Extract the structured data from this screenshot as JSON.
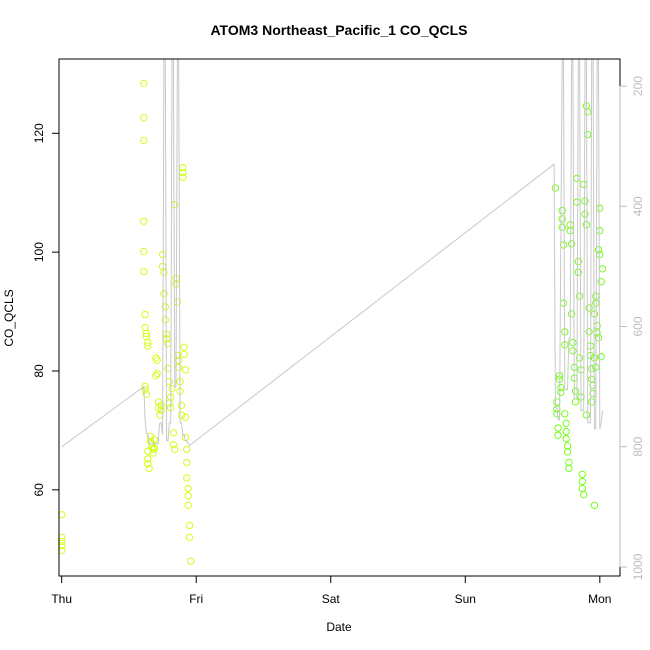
{
  "chart_data": {
    "type": "scatter",
    "title": "ATOM3 Northeast_Pacific_1 CO_QCLS",
    "xlabel": "Date",
    "ylabel": "CO_QCLS",
    "x_ticks": [
      "Thu",
      "Fri",
      "Sat",
      "Sun",
      "Mon"
    ],
    "xlim": [
      -0.02,
      4.15
    ],
    "ylim": [
      45.5,
      132.5
    ],
    "y_ticks": [
      60,
      80,
      100,
      120
    ],
    "y2_ticks": [
      200,
      400,
      600,
      800,
      1000
    ],
    "y2lim": [
      1015,
      155
    ],
    "grid": false,
    "colors": {
      "points_early": "#ccff00",
      "points_late": "#66ff00",
      "altitude_line": "#c8c8c8",
      "frame": "#000000",
      "right_axis": "#bdbdbd"
    },
    "series": [
      {
        "marker": "open-circle",
        "points": [
          [
            0.0,
            55.8
          ],
          [
            0.0,
            52.0
          ],
          [
            0.0,
            51.3
          ],
          [
            0.0,
            50.6
          ],
          [
            0.0,
            49.8
          ],
          [
            0.61,
            128.4
          ],
          [
            0.61,
            122.6
          ],
          [
            0.61,
            118.8
          ],
          [
            0.61,
            105.2
          ],
          [
            0.61,
            100.1
          ],
          [
            0.61,
            96.7
          ],
          [
            0.62,
            89.5
          ],
          [
            0.62,
            87.3
          ],
          [
            0.63,
            86.3
          ],
          [
            0.63,
            85.8
          ],
          [
            0.64,
            84.8
          ],
          [
            0.64,
            84.2
          ],
          [
            0.62,
            77.4
          ],
          [
            0.62,
            76.8
          ],
          [
            0.63,
            76.1
          ],
          [
            0.64,
            66.5
          ],
          [
            0.64,
            65.2
          ],
          [
            0.64,
            64.4
          ],
          [
            0.65,
            63.6
          ],
          [
            0.66,
            68.2
          ],
          [
            0.66,
            69.0
          ],
          [
            0.67,
            67.8
          ],
          [
            0.67,
            67.2
          ],
          [
            0.68,
            66.8
          ],
          [
            0.68,
            66.2
          ],
          [
            0.69,
            67.0
          ],
          [
            0.69,
            68.4
          ],
          [
            0.7,
            79.2
          ],
          [
            0.7,
            82.2
          ],
          [
            0.71,
            81.8
          ],
          [
            0.71,
            79.6
          ],
          [
            0.72,
            74.8
          ],
          [
            0.72,
            73.8
          ],
          [
            0.73,
            72.6
          ],
          [
            0.74,
            73.4
          ],
          [
            0.74,
            74.2
          ],
          [
            0.75,
            97.6
          ],
          [
            0.75,
            99.6
          ],
          [
            0.76,
            96.6
          ],
          [
            0.76,
            93.0
          ],
          [
            0.77,
            90.8
          ],
          [
            0.77,
            88.6
          ],
          [
            0.78,
            86.2
          ],
          [
            0.78,
            85.4
          ],
          [
            0.79,
            84.6
          ],
          [
            0.79,
            80.4
          ],
          [
            0.8,
            78.2
          ],
          [
            0.8,
            74.6
          ],
          [
            0.81,
            73.8
          ],
          [
            0.81,
            75.6
          ],
          [
            0.82,
            77.0
          ],
          [
            0.83,
            69.6
          ],
          [
            0.83,
            67.6
          ],
          [
            0.84,
            66.8
          ],
          [
            0.84,
            108.0
          ],
          [
            0.85,
            95.6
          ],
          [
            0.85,
            94.6
          ],
          [
            0.86,
            91.6
          ],
          [
            0.86,
            82.6
          ],
          [
            0.87,
            81.8
          ],
          [
            0.87,
            80.6
          ],
          [
            0.88,
            78.2
          ],
          [
            0.88,
            76.6
          ],
          [
            0.89,
            74.2
          ],
          [
            0.89,
            72.6
          ],
          [
            0.9,
            114.2
          ],
          [
            0.9,
            113.4
          ],
          [
            0.9,
            112.6
          ],
          [
            0.91,
            84.0
          ],
          [
            0.91,
            82.8
          ],
          [
            0.92,
            80.2
          ],
          [
            0.92,
            72.2
          ],
          [
            0.92,
            68.8
          ],
          [
            0.93,
            66.8
          ],
          [
            0.93,
            64.6
          ],
          [
            0.93,
            62.0
          ],
          [
            0.94,
            60.2
          ],
          [
            0.94,
            59.0
          ],
          [
            0.94,
            57.4
          ],
          [
            0.95,
            54.0
          ],
          [
            0.95,
            52.0
          ],
          [
            0.96,
            48.0
          ]
        ]
      },
      {
        "marker": "open-circle",
        "points": [
          [
            3.67,
            110.8
          ],
          [
            3.68,
            74.8
          ],
          [
            3.68,
            73.6
          ],
          [
            3.68,
            72.8
          ],
          [
            3.69,
            70.4
          ],
          [
            3.69,
            69.2
          ],
          [
            3.7,
            79.2
          ],
          [
            3.7,
            78.6
          ],
          [
            3.71,
            77.2
          ],
          [
            3.71,
            76.4
          ],
          [
            3.72,
            107.0
          ],
          [
            3.72,
            105.6
          ],
          [
            3.72,
            104.2
          ],
          [
            3.73,
            101.2
          ],
          [
            3.73,
            91.4
          ],
          [
            3.74,
            86.6
          ],
          [
            3.74,
            84.4
          ],
          [
            3.74,
            72.8
          ],
          [
            3.75,
            71.2
          ],
          [
            3.75,
            69.8
          ],
          [
            3.75,
            68.6
          ],
          [
            3.76,
            67.4
          ],
          [
            3.76,
            66.4
          ],
          [
            3.77,
            64.6
          ],
          [
            3.77,
            63.6
          ],
          [
            3.78,
            104.6
          ],
          [
            3.78,
            103.6
          ],
          [
            3.79,
            101.4
          ],
          [
            3.79,
            89.6
          ],
          [
            3.8,
            84.8
          ],
          [
            3.8,
            83.4
          ],
          [
            3.81,
            80.6
          ],
          [
            3.81,
            78.8
          ],
          [
            3.82,
            76.6
          ],
          [
            3.82,
            74.8
          ],
          [
            3.83,
            112.4
          ],
          [
            3.83,
            108.4
          ],
          [
            3.84,
            98.4
          ],
          [
            3.84,
            96.6
          ],
          [
            3.85,
            92.6
          ],
          [
            3.85,
            82.2
          ],
          [
            3.86,
            80.2
          ],
          [
            3.86,
            75.6
          ],
          [
            3.87,
            62.6
          ],
          [
            3.87,
            61.4
          ],
          [
            3.87,
            60.2
          ],
          [
            3.88,
            59.2
          ],
          [
            3.88,
            111.4
          ],
          [
            3.89,
            108.6
          ],
          [
            3.89,
            106.4
          ],
          [
            3.9,
            104.6
          ],
          [
            3.9,
            124.6
          ],
          [
            3.91,
            123.6
          ],
          [
            3.91,
            119.8
          ],
          [
            3.92,
            90.6
          ],
          [
            3.92,
            86.6
          ],
          [
            3.93,
            84.2
          ],
          [
            3.93,
            82.6
          ],
          [
            3.94,
            80.4
          ],
          [
            3.94,
            78.6
          ],
          [
            3.95,
            77.6
          ],
          [
            3.95,
            76.2
          ],
          [
            3.96,
            57.4
          ],
          [
            3.96,
            89.6
          ],
          [
            3.97,
            92.6
          ],
          [
            3.97,
            91.4
          ],
          [
            3.98,
            87.6
          ],
          [
            3.98,
            86.4
          ],
          [
            3.99,
            85.6
          ],
          [
            3.99,
            100.4
          ],
          [
            4.0,
            99.6
          ],
          [
            4.0,
            103.6
          ],
          [
            4.0,
            107.4
          ],
          [
            4.01,
            82.4
          ],
          [
            4.01,
            95.0
          ],
          [
            4.02,
            97.2
          ],
          [
            3.96,
            82.2
          ],
          [
            3.97,
            80.6
          ],
          [
            3.94,
            74.8
          ],
          [
            3.9,
            72.6
          ]
        ]
      }
    ],
    "altitude_line": [
      [
        0.0,
        800
      ],
      [
        0.61,
        700
      ],
      [
        0.62,
        755
      ],
      [
        0.63,
        778
      ],
      [
        0.64,
        778
      ],
      [
        0.65,
        795
      ],
      [
        0.72,
        795
      ],
      [
        0.72,
        780
      ],
      [
        0.73,
        760
      ],
      [
        0.74,
        760
      ],
      [
        0.75,
        780
      ],
      [
        0.76,
        150
      ],
      [
        0.77,
        150
      ],
      [
        0.78,
        790
      ],
      [
        0.79,
        790
      ],
      [
        0.8,
        760
      ],
      [
        0.81,
        760
      ],
      [
        0.82,
        150
      ],
      [
        0.83,
        150
      ],
      [
        0.84,
        700
      ],
      [
        0.85,
        700
      ],
      [
        0.86,
        150
      ],
      [
        0.87,
        150
      ],
      [
        0.88,
        760
      ],
      [
        0.89,
        760
      ],
      [
        0.9,
        780
      ],
      [
        0.91,
        780
      ],
      [
        0.92,
        790
      ],
      [
        0.93,
        790
      ],
      [
        0.95,
        798
      ],
      [
        3.66,
        330
      ],
      [
        3.67,
        735
      ],
      [
        3.68,
        735
      ],
      [
        3.69,
        755
      ],
      [
        3.7,
        755
      ],
      [
        3.72,
        150
      ],
      [
        3.73,
        150
      ],
      [
        3.74,
        705
      ],
      [
        3.76,
        705
      ],
      [
        3.77,
        620
      ],
      [
        3.78,
        620
      ],
      [
        3.79,
        150
      ],
      [
        3.8,
        150
      ],
      [
        3.81,
        720
      ],
      [
        3.83,
        720
      ],
      [
        3.84,
        150
      ],
      [
        3.85,
        150
      ],
      [
        3.86,
        740
      ],
      [
        3.88,
        740
      ],
      [
        3.89,
        150
      ],
      [
        3.9,
        150
      ],
      [
        3.91,
        760
      ],
      [
        3.93,
        760
      ],
      [
        3.94,
        150
      ],
      [
        3.95,
        150
      ],
      [
        3.96,
        770
      ],
      [
        3.97,
        770
      ],
      [
        3.98,
        150
      ],
      [
        3.99,
        150
      ],
      [
        4.0,
        770
      ],
      [
        4.01,
        760
      ],
      [
        4.02,
        740
      ]
    ]
  }
}
